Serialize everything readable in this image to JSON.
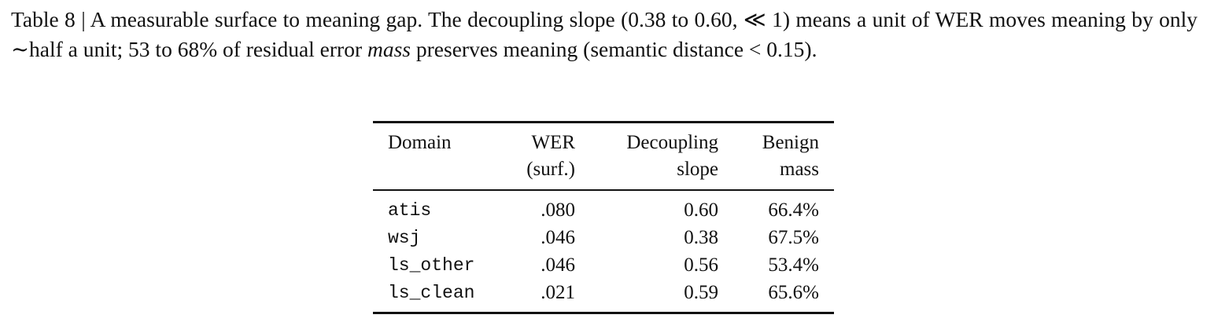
{
  "caption": {
    "label": "Table 8",
    "separator": "|",
    "parts": [
      "A measurable surface to meaning gap. The decoupling slope (0.38 to 0.60, ≪ 1) means a unit of WER moves meaning by only ∼half a unit; 53 to 68% of residual error ",
      "mass",
      " preserves meaning (semantic distance < 0.15)."
    ]
  },
  "table": {
    "header": [
      [
        "Domain"
      ],
      [
        "WER",
        "(surf.)"
      ],
      [
        "Decoupling",
        "slope"
      ],
      [
        "Benign",
        "mass"
      ]
    ],
    "rows": [
      [
        "atis",
        ".080",
        "0.60",
        "66.4%"
      ],
      [
        "wsj",
        ".046",
        "0.38",
        "67.5%"
      ],
      [
        "ls_other",
        ".046",
        "0.56",
        "53.4%"
      ],
      [
        "ls_clean",
        ".021",
        "0.59",
        "65.6%"
      ]
    ]
  }
}
